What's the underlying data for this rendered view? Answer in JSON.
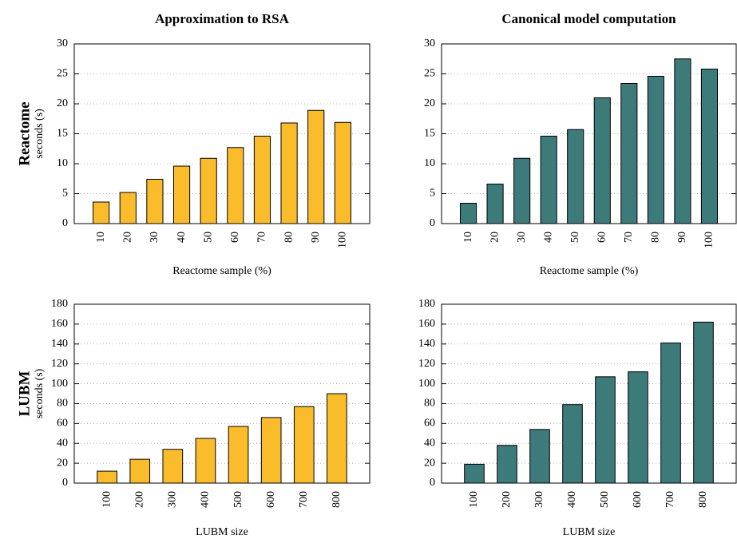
{
  "chart_data": [
    {
      "type": "bar",
      "title": "Approximation to RSA",
      "row_label": "Reactome",
      "ylabel": "seconds (s)",
      "xlabel": "Reactome sample (%)",
      "categories": [
        "10",
        "20",
        "30",
        "40",
        "50",
        "60",
        "70",
        "80",
        "90",
        "100"
      ],
      "values": [
        3.6,
        5.2,
        7.4,
        9.6,
        10.9,
        12.7,
        14.6,
        16.8,
        18.9,
        16.9
      ],
      "color": "#fbbc2c",
      "ylim": [
        0,
        30
      ],
      "yticks": [
        0,
        5,
        10,
        15,
        20,
        25,
        30
      ],
      "grid": true
    },
    {
      "type": "bar",
      "title": "Canonical model computation",
      "xlabel": "Reactome sample (%)",
      "categories": [
        "10",
        "20",
        "30",
        "40",
        "50",
        "60",
        "70",
        "80",
        "90",
        "100"
      ],
      "values": [
        3.4,
        6.6,
        10.9,
        14.6,
        15.7,
        21.0,
        23.4,
        24.6,
        27.5,
        25.8
      ],
      "color": "#3d7a7a",
      "ylim": [
        0,
        30
      ],
      "yticks": [
        0,
        5,
        10,
        15,
        20,
        25,
        30
      ],
      "grid": true
    },
    {
      "type": "bar",
      "row_label": "LUBM",
      "ylabel": "seconds (s)",
      "xlabel": "LUBM size",
      "categories": [
        "100",
        "200",
        "300",
        "400",
        "500",
        "600",
        "700",
        "800"
      ],
      "values": [
        12,
        24,
        34,
        45,
        57,
        66,
        77,
        90
      ],
      "color": "#fbbc2c",
      "ylim": [
        0,
        180
      ],
      "yticks": [
        0,
        20,
        40,
        60,
        80,
        100,
        120,
        140,
        160,
        180
      ],
      "grid": true
    },
    {
      "type": "bar",
      "xlabel": "LUBM size",
      "categories": [
        "100",
        "200",
        "300",
        "400",
        "500",
        "600",
        "700",
        "800"
      ],
      "values": [
        19,
        38,
        54,
        79,
        107,
        112,
        141,
        162
      ],
      "color": "#3d7a7a",
      "ylim": [
        0,
        180
      ],
      "yticks": [
        0,
        20,
        40,
        60,
        80,
        100,
        120,
        140,
        160,
        180
      ],
      "grid": true
    }
  ]
}
